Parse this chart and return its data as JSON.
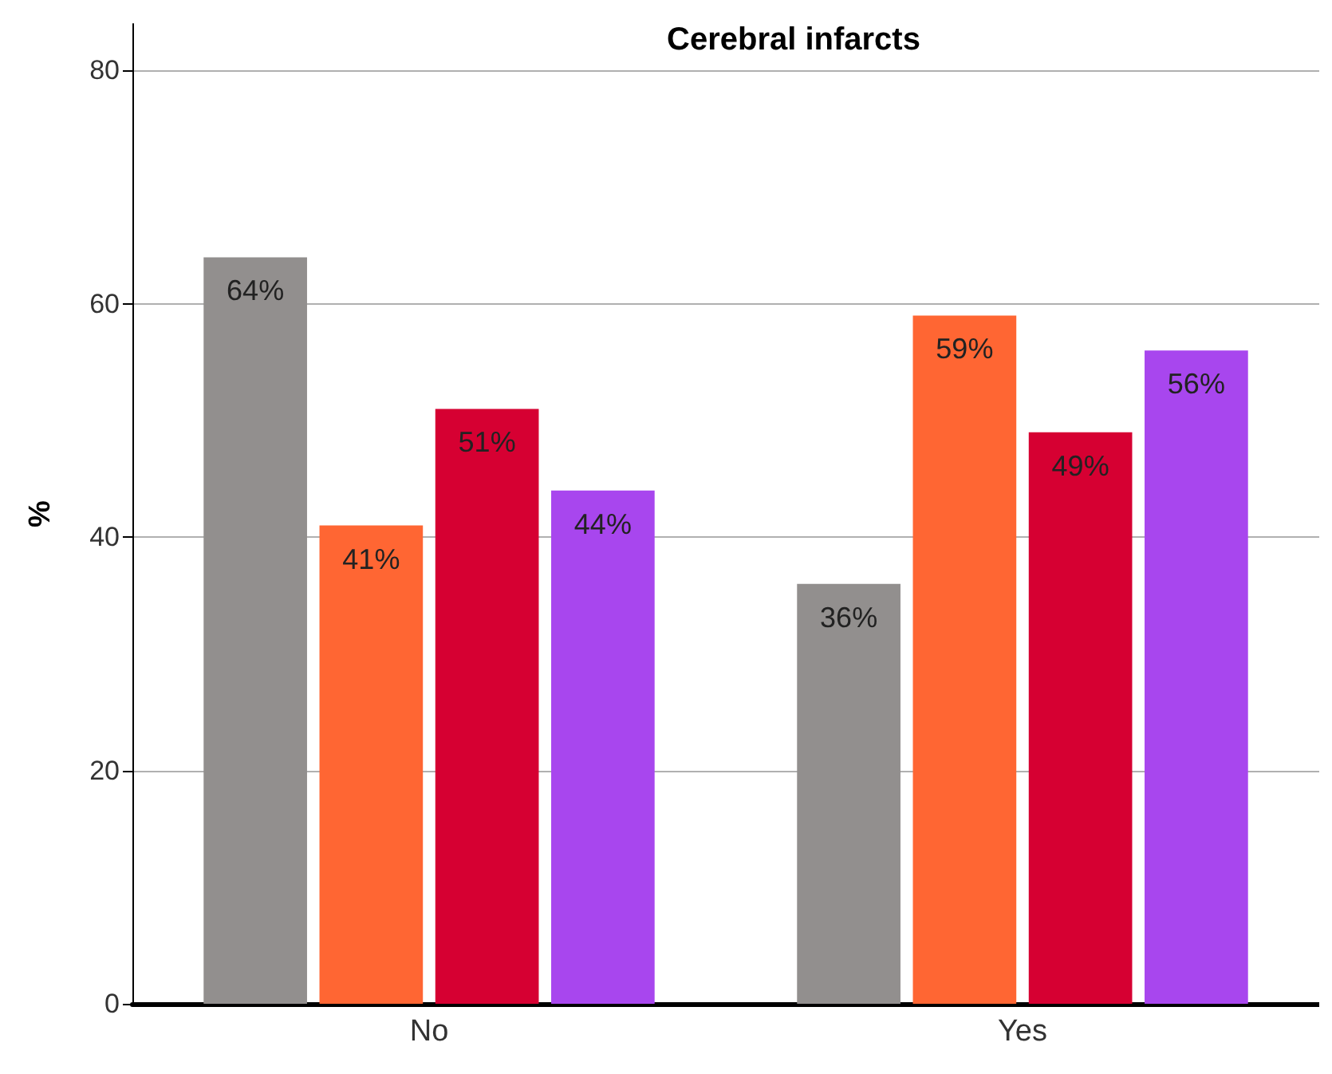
{
  "chart_data": {
    "type": "bar",
    "title": "Cerebral infarcts",
    "ylabel": "%",
    "categories": [
      "No",
      "Yes"
    ],
    "series": [
      {
        "color": "#928f8e",
        "values": [
          64,
          36
        ],
        "value_labels": [
          "64%",
          "36%"
        ]
      },
      {
        "color": "#ff6633",
        "values": [
          41,
          59
        ],
        "value_labels": [
          "41%",
          "59%"
        ]
      },
      {
        "color": "#d60032",
        "values": [
          51,
          49
        ],
        "value_labels": [
          "51%",
          "49%"
        ]
      },
      {
        "color": "#a846ee",
        "values": [
          44,
          56
        ],
        "value_labels": [
          "44%",
          "56%"
        ]
      }
    ],
    "ylim": [
      0,
      84
    ],
    "yticks": [
      0,
      20,
      40,
      60,
      80
    ],
    "grid": "y"
  }
}
